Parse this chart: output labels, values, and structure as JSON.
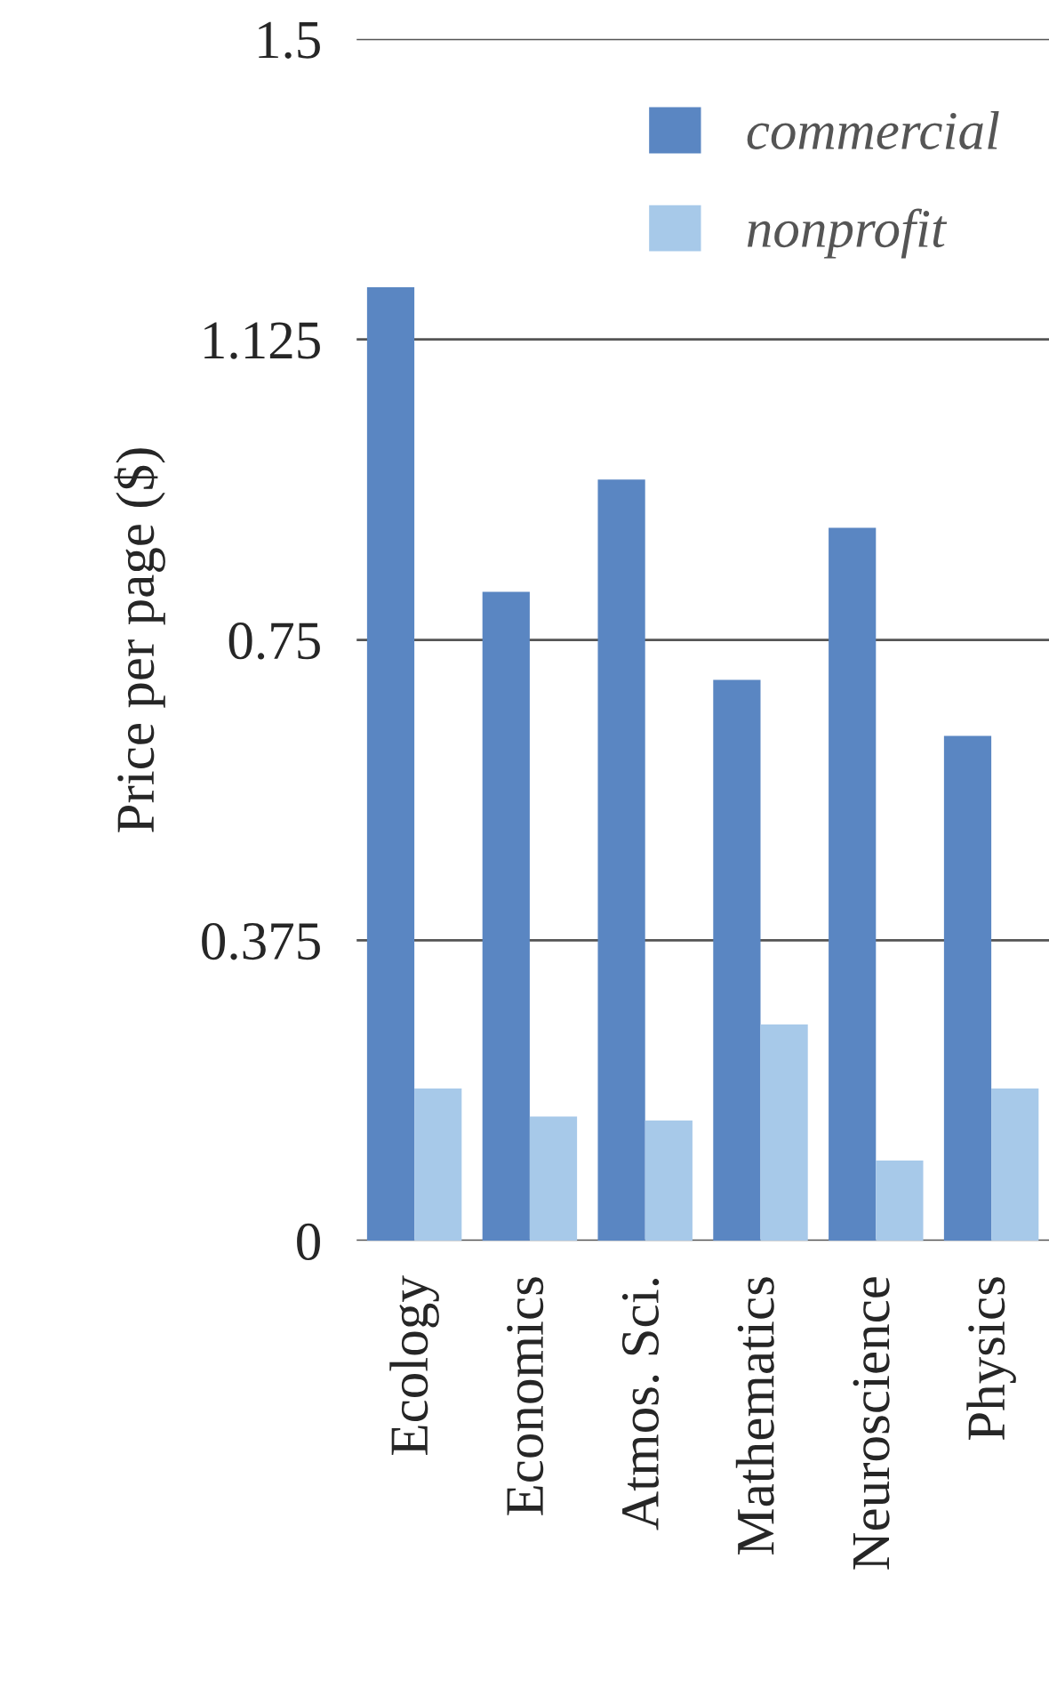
{
  "chart_data": {
    "type": "bar",
    "ylabel": "Price per page ($)",
    "categories": [
      "Ecology",
      "Economics",
      "Atmos. Sci.",
      "Mathematics",
      "Neuroscience",
      "Physics"
    ],
    "series": [
      {
        "name": "commercial",
        "color": "#5a86c2",
        "values": [
          1.19,
          0.81,
          0.95,
          0.7,
          0.89,
          0.63
        ]
      },
      {
        "name": "nonprofit",
        "color": "#a7c9e9",
        "values": [
          0.19,
          0.155,
          0.15,
          0.27,
          0.1,
          0.19
        ]
      }
    ],
    "ylim": [
      0,
      1.5
    ],
    "yticks": [
      0,
      0.375,
      0.75,
      1.125,
      1.5
    ],
    "grid": "y",
    "legend": "top right"
  }
}
